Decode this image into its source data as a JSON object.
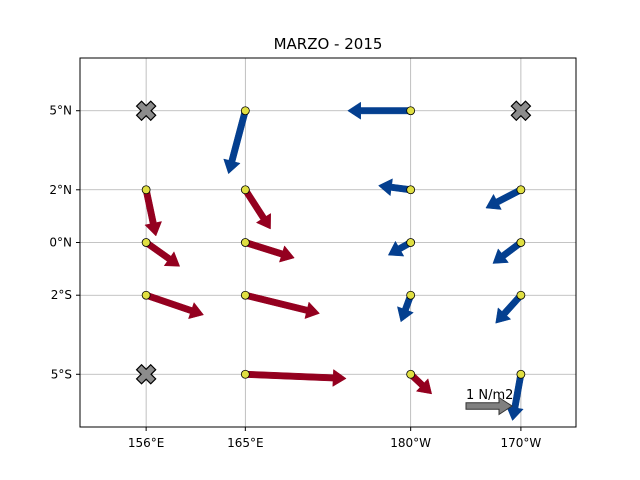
{
  "chart_data": {
    "type": "quiver",
    "title": "MARZO - 2015",
    "xlabel": "",
    "ylabel": "",
    "x_ticks": [
      {
        "label": "156°E",
        "lon": 156
      },
      {
        "label": "165°E",
        "lon": 165
      },
      {
        "label": "180°W",
        "lon": 180
      },
      {
        "label": "170°W",
        "lon": 190
      }
    ],
    "y_ticks": [
      {
        "label": "5°N",
        "lat": 5
      },
      {
        "label": "2°N",
        "lat": 2
      },
      {
        "label": "0°N",
        "lat": 0
      },
      {
        "label": "2°S",
        "lat": -2
      },
      {
        "label": "5°S",
        "lat": -5
      }
    ],
    "xlim": [
      150,
      195
    ],
    "ylim": [
      -7,
      7
    ],
    "grid": true,
    "colors": {
      "eastward": "#94001f",
      "westward": "#043f8f",
      "station": "#e0df42",
      "missing": "#8c8c8c",
      "reference": "#808080",
      "grid": "#b0b0b0"
    },
    "reference_vector": {
      "label": "1 N/m2",
      "magnitude": 1
    },
    "stations": [
      {
        "lon": 156,
        "lat": 5,
        "missing": true
      },
      {
        "lon": 165,
        "lat": 5,
        "u": -0.12,
        "v": -0.45
      },
      {
        "lon": 180,
        "lat": 5,
        "u": -0.45,
        "v": 0.0
      },
      {
        "lon": 190,
        "lat": 5,
        "missing": true
      },
      {
        "lon": 156,
        "lat": 2,
        "u": 0.07,
        "v": -0.33
      },
      {
        "lon": 165,
        "lat": 2,
        "u": 0.18,
        "v": -0.28
      },
      {
        "lon": 180,
        "lat": 2,
        "u": -0.23,
        "v": 0.03
      },
      {
        "lon": 190,
        "lat": 2,
        "u": -0.25,
        "v": -0.13
      },
      {
        "lon": 156,
        "lat": 0,
        "u": 0.24,
        "v": -0.17
      },
      {
        "lon": 165,
        "lat": 0,
        "u": 0.35,
        "v": -0.11
      },
      {
        "lon": 180,
        "lat": 0,
        "u": -0.16,
        "v": -0.09
      },
      {
        "lon": 190,
        "lat": 0,
        "u": -0.2,
        "v": -0.15
      },
      {
        "lon": 156,
        "lat": -2,
        "u": 0.41,
        "v": -0.14
      },
      {
        "lon": 165,
        "lat": -2,
        "u": 0.53,
        "v": -0.13
      },
      {
        "lon": 180,
        "lat": -2,
        "u": -0.07,
        "v": -0.19
      },
      {
        "lon": 190,
        "lat": -2,
        "u": -0.18,
        "v": -0.2
      },
      {
        "lon": 156,
        "lat": -5,
        "missing": true
      },
      {
        "lon": 165,
        "lat": -5,
        "u": 0.72,
        "v": -0.03
      },
      {
        "lon": 180,
        "lat": -5,
        "u": 0.15,
        "v": -0.14
      },
      {
        "lon": 190,
        "lat": -5,
        "u": -0.06,
        "v": -0.33
      }
    ]
  }
}
